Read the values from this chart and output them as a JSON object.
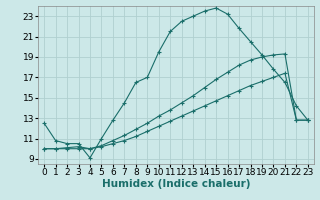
{
  "title": "",
  "xlabel": "Humidex (Indice chaleur)",
  "ylabel": "",
  "bg_color": "#cce8e8",
  "line_color": "#1a6e6a",
  "grid_color": "#b0d0d0",
  "xlim": [
    -0.5,
    23.5
  ],
  "ylim": [
    8.5,
    24.0
  ],
  "xticks": [
    0,
    1,
    2,
    3,
    4,
    5,
    6,
    7,
    8,
    9,
    10,
    11,
    12,
    13,
    14,
    15,
    16,
    17,
    18,
    19,
    20,
    21,
    22,
    23
  ],
  "yticks": [
    9,
    11,
    13,
    15,
    17,
    19,
    21,
    23
  ],
  "line1_x": [
    0,
    1,
    2,
    3,
    4,
    5,
    6,
    7,
    8,
    9,
    10,
    11,
    12,
    13,
    14,
    15,
    16,
    17,
    18,
    19,
    20,
    21,
    22,
    23
  ],
  "line1_y": [
    12.5,
    10.8,
    10.5,
    10.5,
    9.1,
    11.0,
    12.8,
    14.5,
    16.5,
    17.0,
    19.5,
    21.5,
    22.5,
    23.0,
    23.5,
    23.8,
    23.2,
    21.8,
    20.5,
    19.2,
    17.8,
    16.5,
    14.2,
    12.8
  ],
  "line2_x": [
    0,
    1,
    2,
    3,
    4,
    5,
    6,
    7,
    8,
    9,
    10,
    11,
    12,
    13,
    14,
    15,
    16,
    17,
    18,
    19,
    20,
    21,
    22,
    23
  ],
  "line2_y": [
    10.0,
    10.0,
    10.1,
    10.2,
    10.0,
    10.3,
    10.8,
    11.3,
    11.9,
    12.5,
    13.2,
    13.8,
    14.5,
    15.2,
    16.0,
    16.8,
    17.5,
    18.2,
    18.7,
    19.0,
    19.2,
    19.3,
    12.8,
    12.8
  ],
  "line3_x": [
    0,
    1,
    2,
    3,
    4,
    5,
    6,
    7,
    8,
    9,
    10,
    11,
    12,
    13,
    14,
    15,
    16,
    17,
    18,
    19,
    20,
    21,
    22,
    23
  ],
  "line3_y": [
    10.0,
    10.0,
    10.0,
    10.0,
    10.0,
    10.2,
    10.5,
    10.8,
    11.2,
    11.7,
    12.2,
    12.7,
    13.2,
    13.7,
    14.2,
    14.7,
    15.2,
    15.7,
    16.2,
    16.6,
    17.0,
    17.4,
    12.8,
    12.8
  ],
  "font_size": 6.5,
  "xlabel_font_size": 7.5,
  "marker": "+",
  "marker_size": 3,
  "lw": 0.8
}
